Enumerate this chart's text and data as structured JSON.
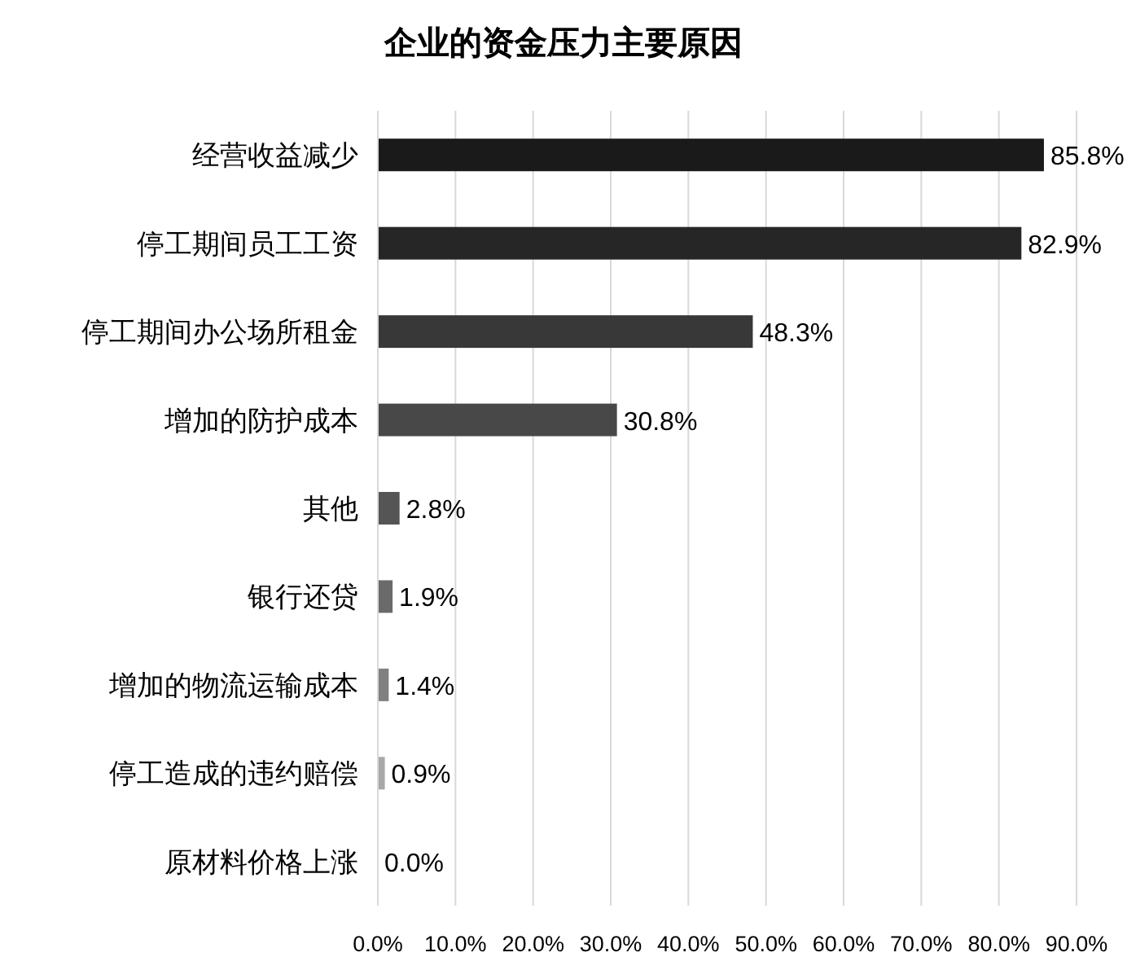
{
  "chart_data": {
    "type": "bar",
    "orientation": "horizontal",
    "title": "企业的资金压力主要原因",
    "categories": [
      "经营收益减少",
      "停工期间员工工资",
      "停工期间办公场所租金",
      "增加的防护成本",
      "其他",
      "银行还贷",
      "增加的物流运输成本",
      "停工造成的违约赔偿",
      "原材料价格上涨"
    ],
    "values": [
      85.8,
      82.9,
      48.3,
      30.8,
      2.8,
      1.9,
      1.4,
      0.9,
      0.0
    ],
    "colors": [
      "#1a1a1a",
      "#262626",
      "#383838",
      "#484848",
      "#555555",
      "#6a6a6a",
      "#808080",
      "#a8a8a8",
      "#c0c0c0"
    ],
    "value_labels": [
      "85.8%",
      "82.9%",
      "48.3%",
      "30.8%",
      "2.8%",
      "1.9%",
      "1.4%",
      "0.9%",
      "0.0%"
    ],
    "xlim": [
      0,
      90
    ],
    "xticks": [
      {
        "value": 0,
        "label": "0.0%"
      },
      {
        "value": 10,
        "label": "10.0%"
      },
      {
        "value": 20,
        "label": "20.0%"
      },
      {
        "value": 30,
        "label": "30.0%"
      },
      {
        "value": 40,
        "label": "40.0%"
      },
      {
        "value": 50,
        "label": "50.0%"
      },
      {
        "value": 60,
        "label": "60.0%"
      },
      {
        "value": 70,
        "label": "70.0%"
      },
      {
        "value": 80,
        "label": "80.0%"
      },
      {
        "value": 90,
        "label": "90.0%"
      }
    ],
    "grid": "x"
  }
}
